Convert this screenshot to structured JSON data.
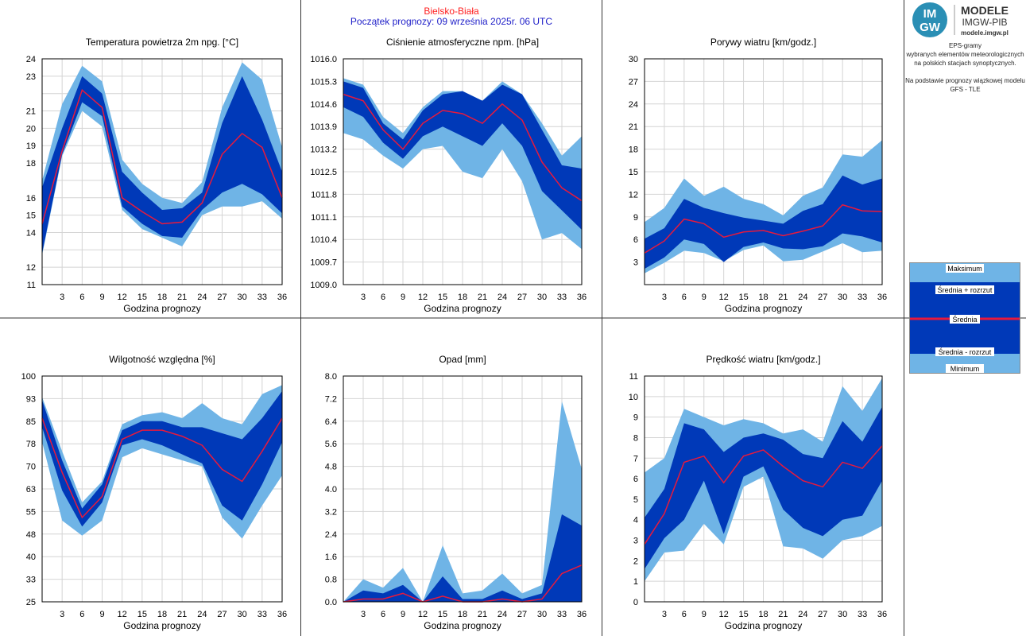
{
  "header": {
    "location": "Bielsko-Biała",
    "start": "Początek prognozy: 09 września 2025r. 06 UTC"
  },
  "branding": {
    "logo_letters_top": "IM",
    "logo_letters_bottom": "GW",
    "title": "MODELE",
    "subtitle": "IMGW-PIB",
    "url": "modele.imgw.pl"
  },
  "description": {
    "line1": "EPS-gramy",
    "line2": "wybranych elementów meteorologicznych",
    "line3": "na polskich stacjach  synoptycznych.",
    "line4": "Na podstawie prognozy wiązkowej modelu",
    "line5": "GFS - TLE"
  },
  "legend": {
    "max": "Maksimum",
    "upper": "Średnia + rozrzut",
    "mean": "Średnia",
    "lower": "Średnia - rozrzut",
    "min": "Minimum"
  },
  "colors": {
    "minmax_band": "#6fb4e6",
    "spread_band": "#0039b8",
    "mean_line": "#e8193c",
    "grid": "#d4d4d4",
    "location_text": "#ff1e1e",
    "start_text": "#1e1ec8"
  },
  "chart_data": [
    {
      "type": "area",
      "title": "Temperatura powietrza 2m npg. [°C]",
      "xlabel": "Godzina prognozy",
      "x": [
        0,
        3,
        6,
        9,
        12,
        15,
        18,
        21,
        24,
        27,
        30,
        33,
        36
      ],
      "xticks": [
        "3",
        "6",
        "9",
        "12",
        "15",
        "18",
        "21",
        "24",
        "27",
        "30",
        "33",
        "36"
      ],
      "yticks": [
        11,
        12,
        13,
        14,
        15,
        16,
        17,
        18,
        19,
        20,
        21,
        22,
        23,
        24
      ],
      "ytick_labels": [
        "11",
        "12",
        "14",
        "15",
        "16",
        "18",
        "19",
        "20",
        "21",
        "23",
        "24"
      ],
      "ylim": [
        11,
        24
      ],
      "max": [
        17.0,
        21.4,
        23.6,
        22.7,
        18.2,
        16.8,
        16.0,
        15.7,
        16.9,
        21.2,
        23.8,
        22.8,
        18.9
      ],
      "upper": [
        16.6,
        20.0,
        23.0,
        22.0,
        17.5,
        16.3,
        15.3,
        15.4,
        16.3,
        20.3,
        23.0,
        20.5,
        17.5
      ],
      "mean": [
        14.5,
        18.7,
        22.2,
        21.2,
        16.0,
        15.2,
        14.5,
        14.6,
        15.7,
        18.5,
        19.7,
        18.9,
        16.0
      ],
      "lower": [
        12.8,
        18.5,
        21.5,
        20.7,
        15.5,
        14.5,
        13.8,
        13.7,
        15.3,
        16.3,
        16.8,
        16.2,
        15.1
      ],
      "min": [
        12.7,
        18.4,
        21.0,
        20.1,
        15.3,
        14.2,
        13.7,
        13.2,
        15.0,
        15.5,
        15.5,
        15.8,
        14.8
      ]
    },
    {
      "type": "area",
      "title": "Ciśnienie atmosferyczne npm. [hPa]",
      "xlabel": "Godzina prognozy",
      "x": [
        0,
        3,
        6,
        9,
        12,
        15,
        18,
        21,
        24,
        27,
        30,
        33,
        36
      ],
      "xticks": [
        "3",
        "6",
        "9",
        "12",
        "15",
        "18",
        "21",
        "24",
        "27",
        "30",
        "33",
        "36"
      ],
      "yticks": [
        1009.0,
        1009.7,
        1010.4,
        1011.1,
        1011.8,
        1012.5,
        1013.2,
        1013.9,
        1014.6,
        1015.3,
        1016.0
      ],
      "ytick_labels": [
        "1009.0",
        "1009.7",
        "1010.4",
        "1011.1",
        "1011.8",
        "1012.5",
        "1013.2",
        "1013.9",
        "1014.6",
        "1015.3",
        "1016.0"
      ],
      "ylim": [
        1009.0,
        1016.0
      ],
      "max": [
        1015.4,
        1015.2,
        1014.2,
        1013.7,
        1014.5,
        1015.0,
        1015.0,
        1014.7,
        1015.3,
        1014.9,
        1014.0,
        1013.0,
        1013.6
      ],
      "upper": [
        1015.3,
        1015.1,
        1014.0,
        1013.5,
        1014.4,
        1014.9,
        1015.0,
        1014.7,
        1015.2,
        1014.9,
        1013.8,
        1012.7,
        1012.6
      ],
      "mean": [
        1014.9,
        1014.7,
        1013.8,
        1013.2,
        1014.0,
        1014.4,
        1014.3,
        1014.0,
        1014.6,
        1014.1,
        1012.8,
        1012.0,
        1011.6
      ],
      "lower": [
        1014.5,
        1014.2,
        1013.4,
        1012.9,
        1013.6,
        1013.9,
        1013.6,
        1013.3,
        1014.0,
        1013.3,
        1011.9,
        1011.3,
        1010.7
      ],
      "min": [
        1013.7,
        1013.5,
        1013.0,
        1012.6,
        1013.2,
        1013.3,
        1012.5,
        1012.3,
        1013.2,
        1012.2,
        1010.4,
        1010.6,
        1010.1
      ]
    },
    {
      "type": "area",
      "title": "Porywy wiatru [km/godz.]",
      "xlabel": "Godzina prognozy",
      "x": [
        0,
        3,
        6,
        9,
        12,
        15,
        18,
        21,
        24,
        27,
        30,
        33,
        36
      ],
      "xticks": [
        "3",
        "6",
        "9",
        "12",
        "15",
        "18",
        "21",
        "24",
        "27",
        "30",
        "33",
        "36"
      ],
      "yticks": [
        0,
        3,
        6,
        9,
        12,
        15,
        18,
        21,
        24,
        27,
        30
      ],
      "ytick_labels": [
        "3",
        "6",
        "9",
        "12",
        "15",
        "18",
        "21",
        "24",
        "27",
        "30"
      ],
      "ylim": [
        0,
        30
      ],
      "max": [
        8.3,
        10.2,
        14.1,
        11.8,
        13.0,
        11.4,
        10.7,
        9.2,
        11.8,
        12.9,
        17.3,
        17.0,
        19.2
      ],
      "upper": [
        6.1,
        7.5,
        11.4,
        10.2,
        9.5,
        8.9,
        8.5,
        8.1,
        9.8,
        10.7,
        14.5,
        13.3,
        14.1
      ],
      "mean": [
        4.2,
        5.8,
        8.7,
        8.1,
        6.3,
        7.0,
        7.2,
        6.5,
        7.1,
        7.8,
        10.6,
        9.8,
        9.7
      ],
      "lower": [
        2.1,
        3.6,
        6.0,
        5.4,
        3.0,
        5.0,
        5.6,
        4.8,
        4.7,
        5.1,
        6.8,
        6.4,
        5.6
      ],
      "min": [
        1.5,
        2.9,
        4.5,
        4.2,
        3.1,
        4.6,
        5.2,
        3.1,
        3.3,
        4.4,
        5.5,
        4.3,
        4.5
      ]
    },
    {
      "type": "area",
      "title": "Wilgotność względna [%]",
      "xlabel": "Godzina prognozy",
      "x": [
        0,
        3,
        6,
        9,
        12,
        15,
        18,
        21,
        24,
        27,
        30,
        33,
        36
      ],
      "xticks": [
        "3",
        "6",
        "9",
        "12",
        "15",
        "18",
        "21",
        "24",
        "27",
        "30",
        "33",
        "36"
      ],
      "yticks": [
        25,
        32.5,
        40,
        47.5,
        55,
        62.5,
        70,
        77.5,
        85,
        92.5,
        100
      ],
      "ytick_labels": [
        "25",
        "33",
        "40",
        "48",
        "55",
        "63",
        "70",
        "78",
        "85",
        "93",
        "100"
      ],
      "ylim": [
        25,
        100
      ],
      "max": [
        93,
        75,
        58,
        65,
        84,
        87,
        88,
        86,
        91,
        86,
        84,
        94,
        97
      ],
      "upper": [
        92,
        72,
        56,
        64,
        82,
        85,
        85,
        83,
        83,
        81,
        79,
        86,
        95
      ],
      "mean": [
        86,
        68,
        53,
        60,
        79,
        82,
        82,
        80,
        77,
        69,
        65,
        75,
        86
      ],
      "lower": [
        83,
        62,
        50,
        58,
        77,
        79,
        77,
        74,
        71,
        57,
        52,
        64,
        78
      ],
      "min": [
        78,
        52,
        47,
        52,
        73,
        76,
        74,
        72,
        70,
        53,
        46,
        57,
        67
      ]
    },
    {
      "type": "area",
      "title": "Opad [mm]",
      "xlabel": "Godzina prognozy",
      "x": [
        0,
        3,
        6,
        9,
        12,
        15,
        18,
        21,
        24,
        27,
        30,
        33,
        36
      ],
      "xticks": [
        "3",
        "6",
        "9",
        "12",
        "15",
        "18",
        "21",
        "24",
        "27",
        "30",
        "33",
        "36"
      ],
      "yticks": [
        0,
        0.8,
        1.6,
        2.4,
        3.2,
        4.0,
        4.8,
        5.6,
        6.4,
        7.2,
        8.0
      ],
      "ytick_labels": [
        "0.0",
        "0.8",
        "1.6",
        "2.4",
        "3.2",
        "4.0",
        "4.8",
        "5.6",
        "6.4",
        "7.2",
        "8.0"
      ],
      "ylim": [
        0,
        8
      ],
      "max": [
        0.0,
        0.8,
        0.5,
        1.2,
        0.0,
        2.0,
        0.3,
        0.4,
        1.0,
        0.3,
        0.6,
        7.1,
        4.7
      ],
      "upper": [
        0.0,
        0.4,
        0.3,
        0.6,
        0.0,
        0.9,
        0.1,
        0.1,
        0.4,
        0.1,
        0.3,
        3.1,
        2.7
      ],
      "mean": [
        0.0,
        0.1,
        0.1,
        0.3,
        0.0,
        0.2,
        0.0,
        0.0,
        0.1,
        0.0,
        0.1,
        1.0,
        1.3
      ],
      "lower": [
        0.0,
        0.0,
        0.0,
        0.0,
        0.0,
        0.0,
        0.0,
        0.0,
        0.0,
        0.0,
        0.0,
        0.0,
        0.0
      ],
      "min": [
        0.0,
        0.0,
        0.0,
        0.0,
        0.0,
        0.0,
        0.0,
        0.0,
        0.0,
        0.0,
        0.0,
        0.0,
        0.0
      ]
    },
    {
      "type": "area",
      "title": "Prędkość wiatru [km/godz.]",
      "xlabel": "Godzina prognozy",
      "x": [
        0,
        3,
        6,
        9,
        12,
        15,
        18,
        21,
        24,
        27,
        30,
        33,
        36
      ],
      "xticks": [
        "3",
        "6",
        "9",
        "12",
        "15",
        "18",
        "21",
        "24",
        "27",
        "30",
        "33",
        "36"
      ],
      "yticks": [
        0,
        1,
        2,
        3,
        4,
        5,
        6,
        7,
        8,
        9,
        10,
        11
      ],
      "ytick_labels": [
        "0",
        "1",
        "2",
        "3",
        "4",
        "5",
        "6",
        "7",
        "8",
        "9",
        "10",
        "11"
      ],
      "ylim": [
        0,
        11
      ],
      "max": [
        6.3,
        7.0,
        9.4,
        9.0,
        8.6,
        8.9,
        8.7,
        8.2,
        8.4,
        7.8,
        10.5,
        9.3,
        10.9
      ],
      "upper": [
        4.1,
        5.5,
        8.7,
        8.4,
        7.3,
        8.0,
        8.2,
        7.9,
        7.2,
        7.0,
        8.8,
        7.8,
        9.5
      ],
      "mean": [
        2.8,
        4.3,
        6.8,
        7.1,
        5.8,
        7.1,
        7.4,
        6.6,
        5.9,
        5.6,
        6.8,
        6.5,
        7.6
      ],
      "lower": [
        1.6,
        3.1,
        4.0,
        5.9,
        3.3,
        6.1,
        6.6,
        4.5,
        3.6,
        3.2,
        4.0,
        4.2,
        5.9
      ],
      "min": [
        1.0,
        2.4,
        2.5,
        3.8,
        2.8,
        5.6,
        6.1,
        2.7,
        2.6,
        2.1,
        3.0,
        3.2,
        3.7
      ]
    }
  ]
}
